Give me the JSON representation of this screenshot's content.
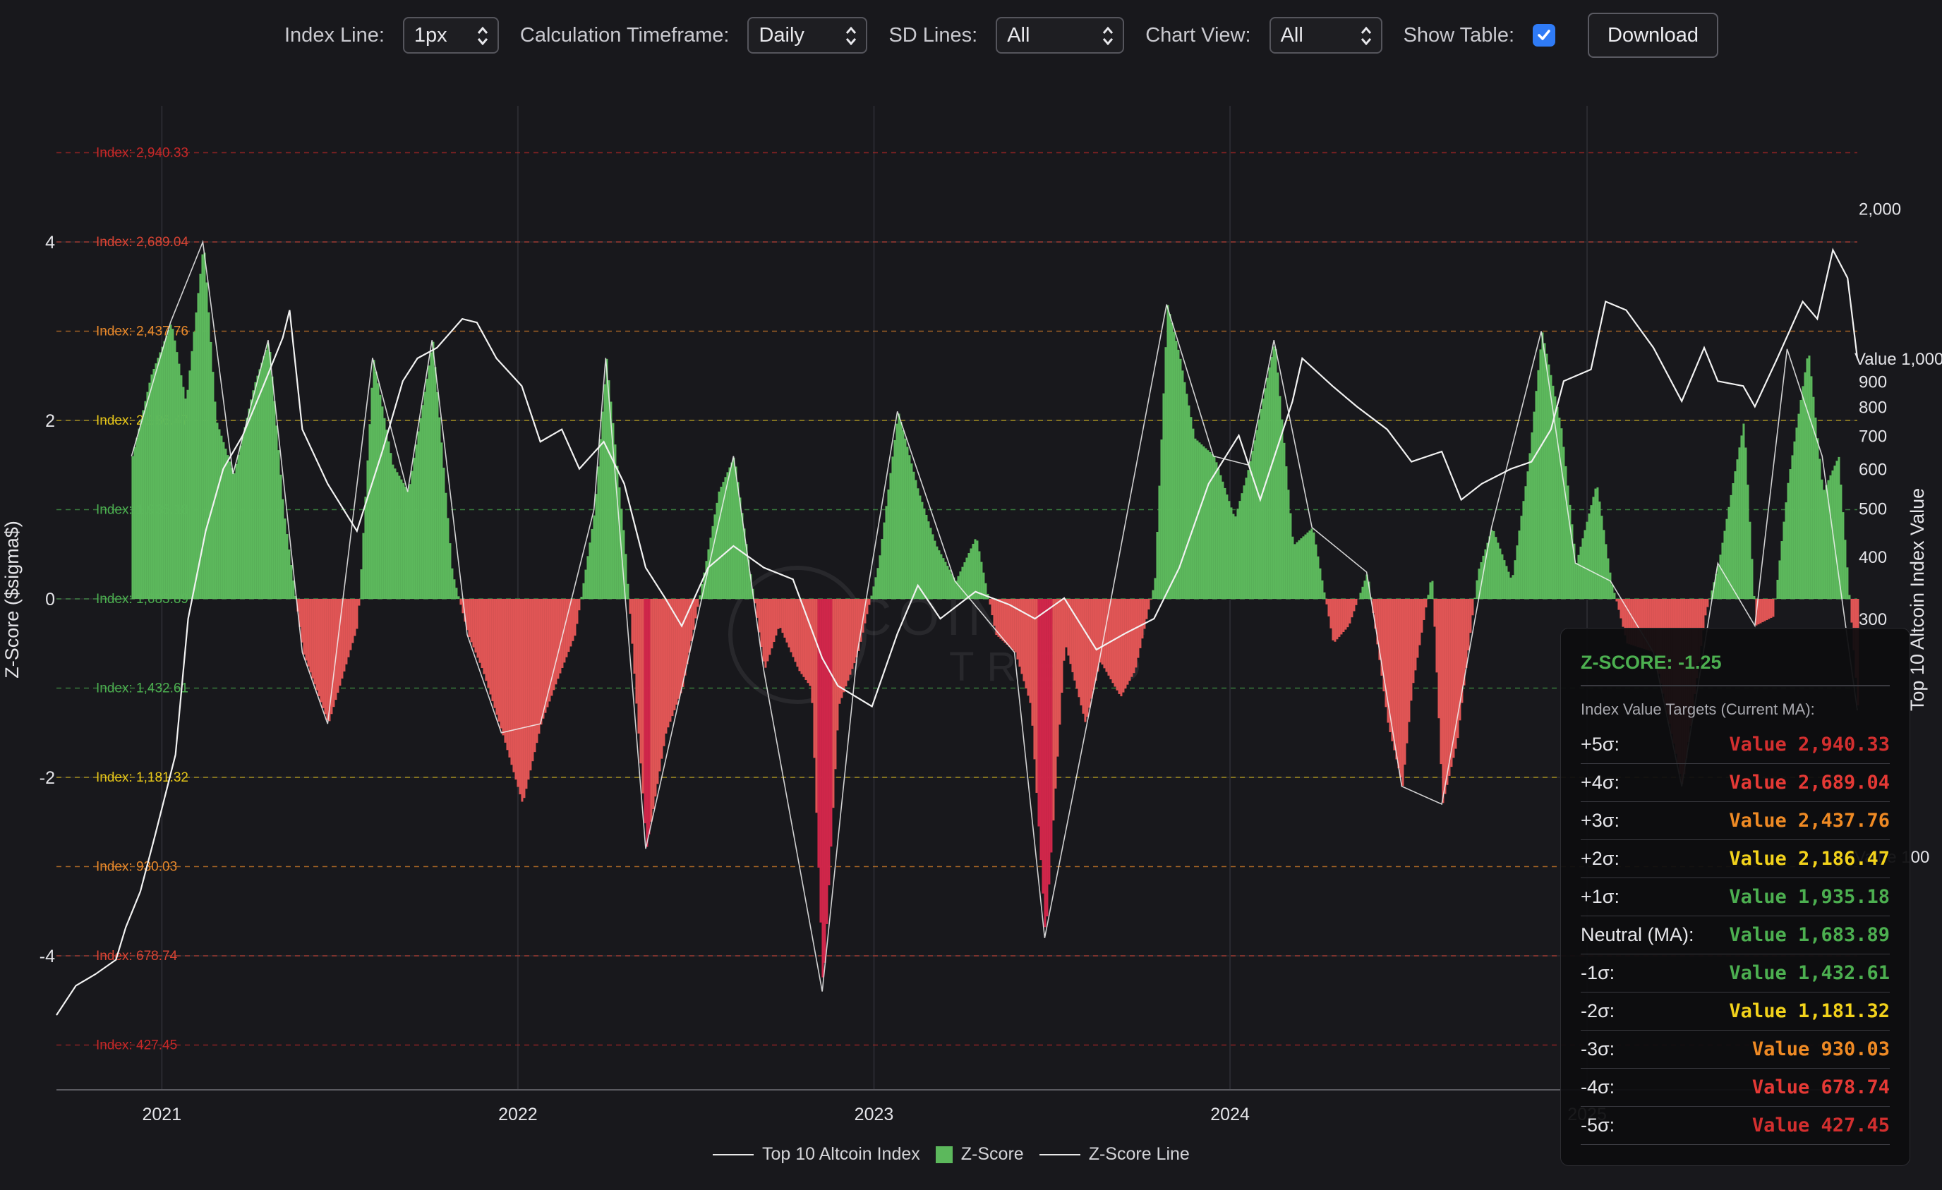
{
  "controls": {
    "index_line_label": "Index Line:",
    "index_line_value": "1px",
    "timeframe_label": "Calculation Timeframe:",
    "timeframe_value": "Daily",
    "sd_lines_label": "SD Lines:",
    "sd_lines_value": "All",
    "chart_view_label": "Chart View:",
    "chart_view_value": "All",
    "show_table_label": "Show Table:",
    "show_table_checked": true,
    "download_label": "Download"
  },
  "chart_data": {
    "type": "bar",
    "xlabel": "",
    "ylabel": "Z-Score ($sigma$)",
    "y2label": "Top 10 Altcoin Index Value",
    "ylim": [
      -5.5,
      5.5
    ],
    "y_ticks": [
      "4",
      "2",
      "0",
      "-2",
      "-4"
    ],
    "x_ticks": [
      "2021",
      "2022",
      "2023",
      "2024",
      "2025"
    ],
    "x_range": [
      "2020-09-15",
      "2025-10-05"
    ],
    "y2_ticks": [
      "2,000",
      "Value 1,000",
      "900",
      "800",
      "700",
      "600",
      "500",
      "400",
      "300",
      "Value 100"
    ],
    "y2_scale": "log",
    "grid": true,
    "legend_position": "bottom",
    "legend": [
      "Top 10 Altcoin Index",
      "Z-Score",
      "Z-Score Line"
    ],
    "sd_levels": [
      {
        "z": 5,
        "label": "Index: 2,940.33",
        "color": "#c62828"
      },
      {
        "z": 4,
        "label": "Index: 2,689.04",
        "color": "#d84333"
      },
      {
        "z": 3,
        "label": "Index: 2,437.76",
        "color": "#e8892b"
      },
      {
        "z": 2,
        "label": "Index: 2,186.47",
        "color": "#e6c619"
      },
      {
        "z": 1,
        "label": "Index: 1,935.18",
        "color": "#4caf50"
      },
      {
        "z": 0,
        "label": "Index: 1,683.89",
        "color": "#4caf50"
      },
      {
        "z": -1,
        "label": "Index: 1,432.61",
        "color": "#4caf50"
      },
      {
        "z": -2,
        "label": "Index: 1,181.32",
        "color": "#e6c619"
      },
      {
        "z": -3,
        "label": "Index: 930.03",
        "color": "#e8892b"
      },
      {
        "z": -4,
        "label": "Index: 678.74",
        "color": "#d84333"
      },
      {
        "z": -5,
        "label": "Index: 427.45",
        "color": "#c62828"
      }
    ],
    "series": [
      {
        "name": "Z-Score",
        "type": "bar",
        "x": [
          "2020-12-01",
          "2020-12-20",
          "2021-01-10",
          "2021-01-25",
          "2021-02-12",
          "2021-02-25",
          "2021-03-15",
          "2021-04-05",
          "2021-04-20",
          "2021-05-05",
          "2021-05-15",
          "2021-05-25",
          "2021-06-20",
          "2021-07-20",
          "2021-08-05",
          "2021-08-25",
          "2021-09-10",
          "2021-10-05",
          "2021-10-25",
          "2021-11-10",
          "2021-11-25",
          "2021-12-15",
          "2022-01-05",
          "2022-01-24",
          "2022-02-10",
          "2022-02-28",
          "2022-03-20",
          "2022-04-01",
          "2022-04-20",
          "2022-05-12",
          "2022-06-01",
          "2022-06-18",
          "2022-07-10",
          "2022-07-25",
          "2022-08-10",
          "2022-08-25",
          "2022-09-10",
          "2022-09-25",
          "2022-10-15",
          "2022-10-28",
          "2022-11-09",
          "2022-11-25",
          "2022-12-15",
          "2023-01-05",
          "2023-01-25",
          "2023-02-15",
          "2023-03-05",
          "2023-03-25",
          "2023-04-15",
          "2023-05-05",
          "2023-05-25",
          "2023-06-10",
          "2023-06-25",
          "2023-07-15",
          "2023-08-05",
          "2023-08-20",
          "2023-09-10",
          "2023-09-25",
          "2023-10-15",
          "2023-10-28",
          "2023-11-10",
          "2023-11-25",
          "2023-12-15",
          "2024-01-05",
          "2024-01-20",
          "2024-02-15",
          "2024-03-05",
          "2024-03-25",
          "2024-04-15",
          "2024-05-01",
          "2024-05-20",
          "2024-06-10",
          "2024-06-25",
          "2024-07-05",
          "2024-07-25",
          "2024-08-05",
          "2024-08-20",
          "2024-09-10",
          "2024-09-25",
          "2024-10-15",
          "2024-11-01",
          "2024-11-15",
          "2024-12-05",
          "2024-12-20",
          "2025-01-10",
          "2025-01-25",
          "2025-02-10",
          "2025-03-10",
          "2025-04-08",
          "2025-05-01",
          "2025-05-15",
          "2025-06-10",
          "2025-06-22",
          "2025-07-10",
          "2025-07-25",
          "2025-08-15",
          "2025-08-30",
          "2025-09-15",
          "2025-10-05"
        ],
        "values": [
          1.6,
          2.5,
          3.1,
          2.2,
          4.0,
          2.0,
          1.4,
          2.4,
          2.9,
          1.0,
          0.2,
          -0.6,
          -1.4,
          -0.3,
          2.7,
          1.5,
          1.2,
          2.9,
          0.3,
          -0.4,
          -0.8,
          -1.5,
          -2.3,
          -1.4,
          -0.9,
          -0.4,
          1.0,
          2.7,
          0.6,
          -2.8,
          -1.5,
          -1.0,
          0.3,
          1.2,
          1.6,
          0.4,
          -0.8,
          -0.3,
          -0.8,
          -1.0,
          -4.4,
          -1.2,
          -0.6,
          0.4,
          2.1,
          1.2,
          0.6,
          0.2,
          0.7,
          -0.4,
          -0.6,
          -1.2,
          -3.8,
          -0.5,
          -1.4,
          -0.7,
          -1.1,
          -0.8,
          0.2,
          3.3,
          2.7,
          1.8,
          1.6,
          0.9,
          1.5,
          2.9,
          0.6,
          0.8,
          -0.5,
          -0.3,
          0.3,
          -1.4,
          -2.1,
          -1.0,
          0.3,
          -2.3,
          -1.6,
          0.3,
          0.8,
          0.2,
          1.5,
          3.0,
          1.9,
          0.4,
          1.3,
          0.2,
          -0.5,
          -0.6,
          -2.1,
          -0.2,
          0.4,
          2.0,
          -0.3,
          -0.2,
          1.3,
          2.8,
          1.2,
          1.6,
          -1.25
        ]
      },
      {
        "name": "Top 10 Altcoin Index",
        "type": "line",
        "x": [
          "2020-09-15",
          "2020-10-05",
          "2020-10-25",
          "2020-11-15",
          "2020-11-25",
          "2020-12-10",
          "2020-12-25",
          "2021-01-15",
          "2021-01-28",
          "2021-02-15",
          "2021-03-05",
          "2021-03-25",
          "2021-04-15",
          "2021-05-05",
          "2021-05-12",
          "2021-05-25",
          "2021-06-20",
          "2021-07-20",
          "2021-08-15",
          "2021-09-05",
          "2021-09-20",
          "2021-10-10",
          "2021-11-05",
          "2021-11-20",
          "2021-12-10",
          "2022-01-05",
          "2022-01-24",
          "2022-02-15",
          "2022-03-05",
          "2022-03-30",
          "2022-04-20",
          "2022-05-12",
          "2022-06-01",
          "2022-06-18",
          "2022-07-15",
          "2022-08-10",
          "2022-09-10",
          "2022-10-10",
          "2022-11-09",
          "2022-11-25",
          "2022-12-30",
          "2023-01-25",
          "2023-02-15",
          "2023-03-10",
          "2023-04-15",
          "2023-05-20",
          "2023-06-15",
          "2023-07-15",
          "2023-08-17",
          "2023-09-15",
          "2023-10-15",
          "2023-11-10",
          "2023-12-10",
          "2024-01-10",
          "2024-02-01",
          "2024-03-05",
          "2024-03-15",
          "2024-04-15",
          "2024-05-10",
          "2024-06-10",
          "2024-07-05",
          "2024-08-05",
          "2024-08-25",
          "2024-09-15",
          "2024-10-15",
          "2024-11-05",
          "2024-11-25",
          "2024-12-08",
          "2025-01-05",
          "2025-01-20",
          "2025-02-10",
          "2025-03-10",
          "2025-04-08",
          "2025-05-01",
          "2025-05-15",
          "2025-06-10",
          "2025-06-22",
          "2025-07-15",
          "2025-08-10",
          "2025-08-25",
          "2025-09-10",
          "2025-09-25",
          "2025-10-05"
        ],
        "values": [
          48,
          55,
          58,
          62,
          72,
          85,
          110,
          160,
          300,
          450,
          600,
          700,
          880,
          1100,
          1250,
          720,
          560,
          450,
          650,
          900,
          1000,
          1050,
          1200,
          1180,
          1000,
          880,
          680,
          720,
          600,
          680,
          560,
          380,
          330,
          290,
          380,
          420,
          380,
          360,
          250,
          220,
          200,
          280,
          350,
          300,
          340,
          320,
          300,
          330,
          260,
          280,
          300,
          380,
          560,
          700,
          520,
          820,
          1000,
          880,
          800,
          720,
          620,
          650,
          520,
          560,
          600,
          620,
          720,
          900,
          950,
          1300,
          1250,
          1050,
          820,
          1050,
          900,
          880,
          800,
          1000,
          1300,
          1200,
          1650,
          1450,
          1000
        ]
      },
      {
        "name": "Z-Score Line",
        "type": "line",
        "x": [
          "2020-12-01",
          "2021-01-10",
          "2021-02-12",
          "2021-03-15",
          "2021-04-20",
          "2021-05-25",
          "2021-06-20",
          "2021-08-05",
          "2021-09-10",
          "2021-10-05",
          "2021-11-10",
          "2021-12-15",
          "2022-01-24",
          "2022-03-20",
          "2022-04-01",
          "2022-05-12",
          "2022-06-18",
          "2022-08-10",
          "2022-09-10",
          "2022-11-09",
          "2022-12-15",
          "2023-01-25",
          "2023-03-25",
          "2023-05-25",
          "2023-06-25",
          "2023-08-20",
          "2023-10-28",
          "2023-12-15",
          "2024-01-20",
          "2024-02-15",
          "2024-03-25",
          "2024-05-20",
          "2024-06-25",
          "2024-08-05",
          "2024-09-25",
          "2024-11-15",
          "2024-12-20",
          "2025-01-25",
          "2025-03-10",
          "2025-04-08",
          "2025-05-15",
          "2025-06-22",
          "2025-07-25",
          "2025-08-30",
          "2025-10-05"
        ],
        "values": [
          1.6,
          3.1,
          4.0,
          1.4,
          2.9,
          -0.6,
          -1.4,
          2.7,
          1.2,
          2.9,
          -0.4,
          -1.5,
          -1.4,
          1.0,
          2.7,
          -2.8,
          -1.0,
          1.6,
          -0.8,
          -4.4,
          -0.6,
          2.1,
          0.2,
          -0.6,
          -3.8,
          -0.7,
          3.3,
          1.6,
          1.5,
          2.9,
          0.8,
          0.3,
          -2.1,
          -2.3,
          0.8,
          3.0,
          0.4,
          0.2,
          -0.6,
          -2.1,
          0.4,
          -0.3,
          2.8,
          1.6,
          -1.25
        ]
      }
    ]
  },
  "watermark": {
    "line1": "COINTAIN",
    "line2": "TREND"
  },
  "tooltip": {
    "title": "Z-SCORE: -1.25",
    "subtitle": "Index Value Targets (Current MA):",
    "rows": [
      {
        "label": "+5σ:",
        "value": "Value 2,940.33",
        "color": "#d32f2f"
      },
      {
        "label": "+4σ:",
        "value": "Value 2,689.04",
        "color": "#e53935"
      },
      {
        "label": "+3σ:",
        "value": "Value 2,437.76",
        "color": "#ef8a24"
      },
      {
        "label": "+2σ:",
        "value": "Value 2,186.47",
        "color": "#f2d21b"
      },
      {
        "label": "+1σ:",
        "value": "Value 1,935.18",
        "color": "#4caf50"
      },
      {
        "label": "Neutral (MA):",
        "value": "Value 1,683.89",
        "color": "#4caf50"
      },
      {
        "label": "-1σ:",
        "value": "Value 1,432.61",
        "color": "#4caf50"
      },
      {
        "label": "-2σ:",
        "value": "Value 1,181.32",
        "color": "#f2d21b"
      },
      {
        "label": "-3σ:",
        "value": "Value 930.03",
        "color": "#ef8a24"
      },
      {
        "label": "-4σ:",
        "value": "Value 678.74",
        "color": "#e53935"
      },
      {
        "label": "-5σ:",
        "value": "Value 427.45",
        "color": "#d32f2f"
      }
    ]
  },
  "colors": {
    "positive": "#5cb85c",
    "negative": "#e05555",
    "negative_deep": "#d0264a",
    "line": "#f2f2f2",
    "background": "#18181c",
    "grid": "#2a2a30"
  }
}
